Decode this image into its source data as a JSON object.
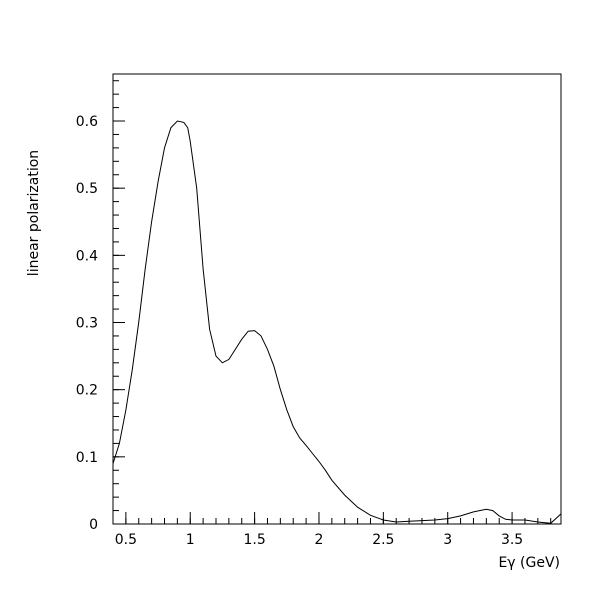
{
  "chart_data": {
    "type": "line",
    "title": "",
    "xlabel": "Eγ (GeV)",
    "ylabel": "linear polarization",
    "xlim": [
      0.4,
      3.88
    ],
    "ylim": [
      0,
      0.67
    ],
    "grid": false,
    "x_ticks": [
      {
        "value": 0.5,
        "label": "0.5"
      },
      {
        "value": 1.0,
        "label": "1"
      },
      {
        "value": 1.5,
        "label": "1.5"
      },
      {
        "value": 2.0,
        "label": "2"
      },
      {
        "value": 2.5,
        "label": "2.5"
      },
      {
        "value": 3.0,
        "label": "3"
      },
      {
        "value": 3.5,
        "label": "3.5"
      }
    ],
    "y_ticks": [
      {
        "value": 0.0,
        "label": "0"
      },
      {
        "value": 0.1,
        "label": "0.1"
      },
      {
        "value": 0.2,
        "label": "0.2"
      },
      {
        "value": 0.3,
        "label": "0.3"
      },
      {
        "value": 0.4,
        "label": "0.4"
      },
      {
        "value": 0.5,
        "label": "0.5"
      },
      {
        "value": 0.6,
        "label": "0.6"
      }
    ],
    "x_minor_step": 0.1,
    "y_minor_step": 0.02,
    "series": [
      {
        "color": "#000000",
        "x": [
          0.4,
          0.45,
          0.5,
          0.55,
          0.6,
          0.65,
          0.7,
          0.75,
          0.8,
          0.85,
          0.9,
          0.95,
          0.98,
          1.0,
          1.05,
          1.1,
          1.15,
          1.2,
          1.25,
          1.3,
          1.35,
          1.4,
          1.45,
          1.5,
          1.55,
          1.6,
          1.65,
          1.7,
          1.75,
          1.8,
          1.85,
          1.9,
          1.95,
          2.0,
          2.05,
          2.1,
          2.2,
          2.3,
          2.4,
          2.5,
          2.6,
          2.7,
          2.8,
          2.9,
          3.0,
          3.1,
          3.2,
          3.3,
          3.35,
          3.4,
          3.45,
          3.5,
          3.6,
          3.7,
          3.8,
          3.88
        ],
        "y": [
          0.09,
          0.12,
          0.17,
          0.23,
          0.3,
          0.38,
          0.45,
          0.51,
          0.56,
          0.59,
          0.6,
          0.598,
          0.59,
          0.57,
          0.5,
          0.38,
          0.29,
          0.25,
          0.24,
          0.245,
          0.26,
          0.275,
          0.287,
          0.288,
          0.28,
          0.26,
          0.235,
          0.2,
          0.17,
          0.145,
          0.128,
          0.117,
          0.105,
          0.093,
          0.08,
          0.065,
          0.043,
          0.025,
          0.013,
          0.006,
          0.003,
          0.004,
          0.005,
          0.006,
          0.008,
          0.012,
          0.018,
          0.022,
          0.02,
          0.012,
          0.007,
          0.006,
          0.006,
          0.003,
          0.001,
          0.015
        ]
      }
    ]
  }
}
